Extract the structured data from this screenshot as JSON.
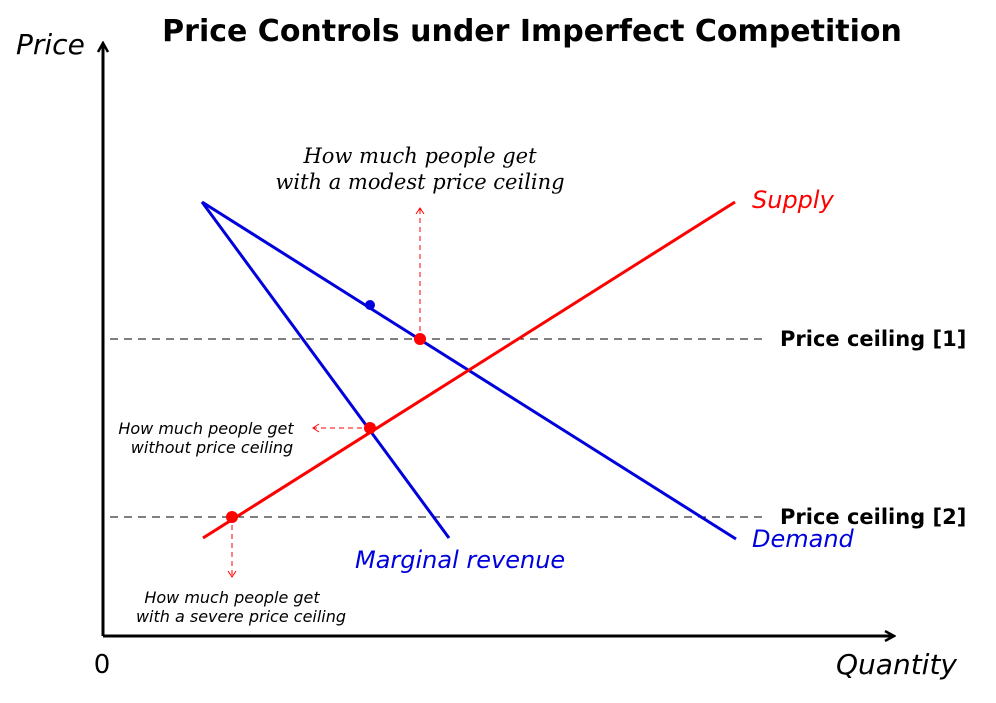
{
  "colors": {
    "supply": "#ff0000",
    "demand": "#0000dd",
    "axis": "#000000",
    "annotation": "#ff0000"
  },
  "title": "Price Controls under Imperfect Competition",
  "axes": {
    "y_label": "Price",
    "x_label": "Quantity",
    "origin_label": "0"
  },
  "curves": {
    "supply_label": "Supply",
    "demand_label": "Demand",
    "mr_label": "Marginal revenue"
  },
  "ceilings": {
    "ceiling1_label": "Price ceiling [1]",
    "ceiling2_label": "Price ceiling [2]"
  },
  "annotations": {
    "modest_line1": "How much people get",
    "modest_line2": "with a modest price ceiling",
    "without_line1": "How much people get",
    "without_line2": "without price ceiling",
    "severe_line1": "How much people get",
    "severe_line2": "with a severe price ceiling"
  }
}
